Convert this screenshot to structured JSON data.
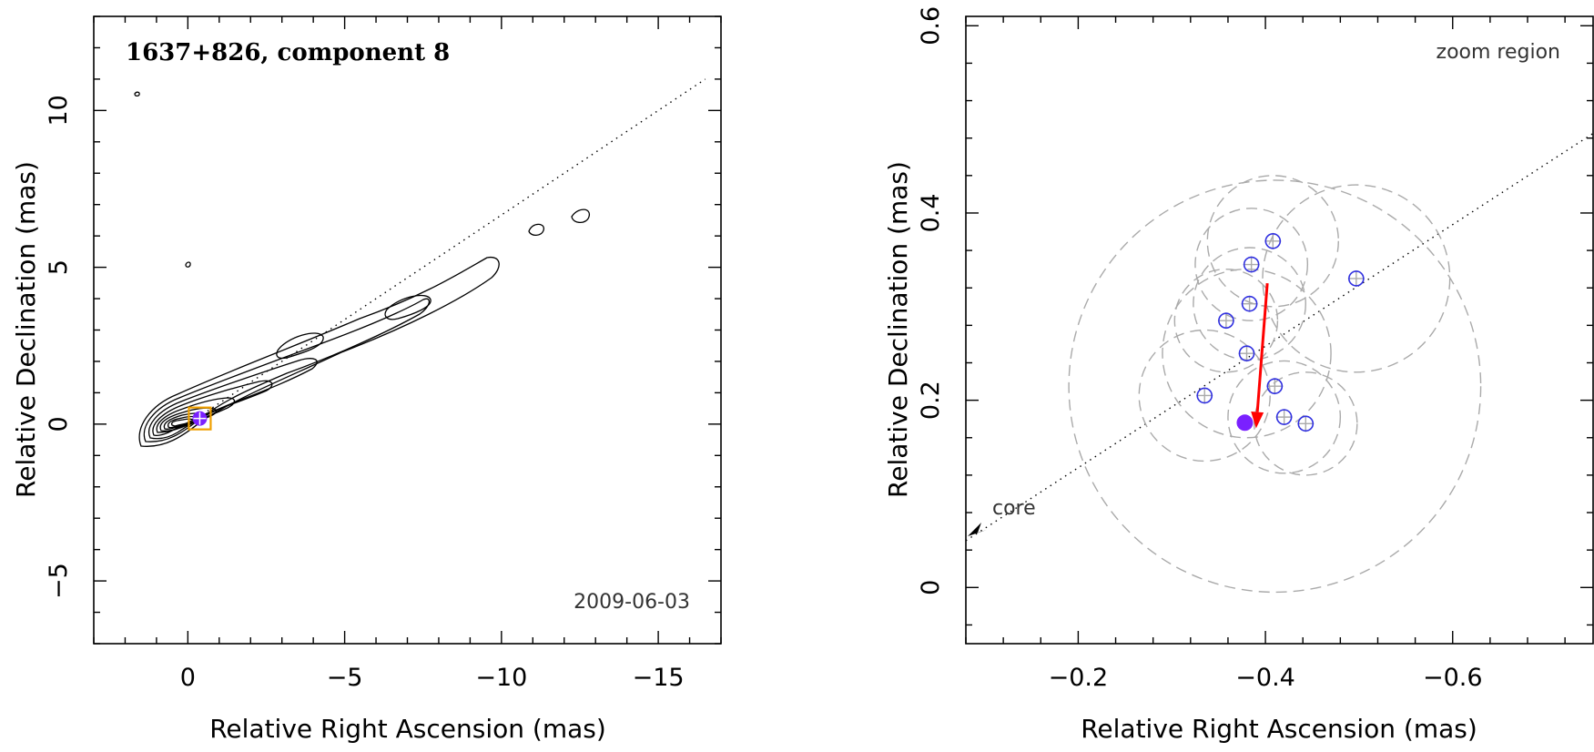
{
  "chart_data": [
    {
      "type": "contour",
      "title": "1637+826, component 8",
      "date_label": "2009-06-03",
      "xlabel": "Relative Right Ascension (mas)",
      "ylabel": "Relative Declination (mas)",
      "xlim": [
        3,
        -17
      ],
      "ylim": [
        -7,
        13
      ],
      "xticks": [
        0,
        -5,
        -10,
        -15
      ],
      "yticks": [
        -5,
        0,
        5,
        10
      ],
      "xtick_labels": [
        "0",
        "−5",
        "−10",
        "−15"
      ],
      "ytick_labels": [
        "−5",
        "0",
        "5",
        "10"
      ],
      "jet_axis": {
        "x": [
          0,
          -16.5
        ],
        "y": [
          0,
          11
        ]
      },
      "component": {
        "x": -0.38,
        "y": 0.18,
        "color": "#7a20ff",
        "box_color": "#f0a000"
      }
    },
    {
      "type": "scatter",
      "annotation": "zoom region",
      "core_label": "core",
      "xlabel": "Relative Right Ascension (mas)",
      "ylabel": "Relative Declination (mas)",
      "xlim": [
        -0.08,
        -0.75
      ],
      "ylim": [
        -0.06,
        0.61
      ],
      "xticks": [
        -0.2,
        -0.4,
        -0.6
      ],
      "yticks": [
        0,
        0.2,
        0.4,
        0.6
      ],
      "xtick_labels": [
        "−0.2",
        "−0.4",
        "−0.6"
      ],
      "ytick_labels": [
        "0",
        "0.2",
        "0.4",
        "0.6"
      ],
      "ridge_line": {
        "x": [
          -0.08,
          -0.75
        ],
        "y": [
          0.05,
          0.485
        ]
      },
      "epochs": [
        {
          "x": -0.408,
          "y": 0.37,
          "r": 0.07
        },
        {
          "x": -0.385,
          "y": 0.345,
          "r": 0.06
        },
        {
          "x": -0.497,
          "y": 0.33,
          "r": 0.1
        },
        {
          "x": -0.383,
          "y": 0.303,
          "r": 0.06
        },
        {
          "x": -0.358,
          "y": 0.285,
          "r": 0.055
        },
        {
          "x": -0.38,
          "y": 0.25,
          "r": 0.09
        },
        {
          "x": -0.41,
          "y": 0.215,
          "r": 0.22
        },
        {
          "x": -0.335,
          "y": 0.205,
          "r": 0.07
        },
        {
          "x": -0.42,
          "y": 0.182,
          "r": 0.06
        },
        {
          "x": -0.443,
          "y": 0.175,
          "r": 0.055
        }
      ],
      "mean_position": {
        "x": -0.378,
        "y": 0.176,
        "color": "#7a20ff"
      },
      "motion_vector": {
        "x0": -0.402,
        "y0": 0.325,
        "x1": -0.39,
        "y1": 0.17,
        "color": "#ff0000"
      },
      "open_marker_color": "#3030e0"
    }
  ]
}
